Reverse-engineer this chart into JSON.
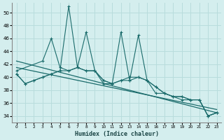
{
  "xlabel": "Humidex (Indice chaleur)",
  "bg_color": "#d4eeee",
  "line_color": "#1a6b6b",
  "grid_color": "#b8dcdc",
  "xlim": [
    -0.5,
    23.5
  ],
  "ylim": [
    33.0,
    51.5
  ],
  "yticks": [
    34,
    36,
    38,
    40,
    42,
    44,
    46,
    48,
    50
  ],
  "xticks": [
    0,
    1,
    2,
    3,
    4,
    5,
    6,
    7,
    8,
    9,
    10,
    11,
    12,
    13,
    14,
    15,
    16,
    17,
    18,
    19,
    20,
    21,
    22,
    23
  ],
  "line_spiky_x": [
    0,
    1,
    2,
    3,
    4,
    5,
    6,
    7,
    8,
    9,
    10,
    11,
    12,
    13,
    14,
    15,
    16,
    17,
    18,
    19,
    20,
    21,
    22,
    23
  ],
  "line_spiky_y": [
    40.5,
    39.0,
    39.5,
    40.0,
    40.5,
    41.0,
    51.0,
    41.5,
    47.0,
    41.0,
    39.0,
    39.0,
    47.0,
    39.5,
    46.5,
    39.5,
    38.5,
    37.5,
    37.0,
    37.0,
    36.5,
    36.5,
    34.0,
    34.5
  ],
  "line_upper_x": [
    0,
    3,
    4,
    5,
    6,
    7,
    8,
    9,
    10,
    11,
    12,
    13,
    14,
    15,
    16,
    17,
    18,
    19,
    20,
    21,
    22,
    23
  ],
  "line_upper_y": [
    41.0,
    42.5,
    46.0,
    41.5,
    41.0,
    41.5,
    41.0,
    41.0,
    39.5,
    39.0,
    39.5,
    40.0,
    40.0,
    39.5,
    37.5,
    37.5,
    37.0,
    36.5,
    36.5,
    36.5,
    34.0,
    34.5
  ],
  "trend1_x": [
    0,
    23
  ],
  "trend1_y": [
    41.5,
    35.0
  ],
  "trend2_x": [
    0,
    23
  ],
  "trend2_y": [
    42.5,
    34.5
  ],
  "line_lower_x": [
    0,
    1,
    2,
    3,
    4,
    5,
    6,
    7,
    8,
    9,
    10,
    11,
    12,
    13,
    14,
    15,
    16,
    17,
    18,
    19,
    20,
    21,
    22,
    23
  ],
  "line_lower_y": [
    40.5,
    39.0,
    39.5,
    40.0,
    40.5,
    41.0,
    41.0,
    41.5,
    41.0,
    41.0,
    39.5,
    39.0,
    39.5,
    39.5,
    40.0,
    39.5,
    38.5,
    37.5,
    37.0,
    37.0,
    36.5,
    36.5,
    34.0,
    34.5
  ]
}
